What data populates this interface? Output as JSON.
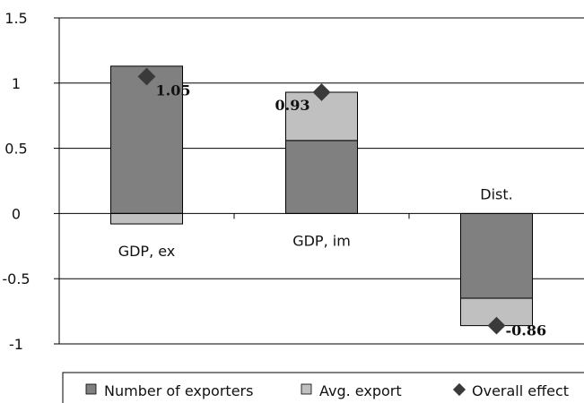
{
  "chart_data": {
    "type": "bar",
    "stacked": true,
    "categories": [
      "GDP, ex",
      "GDP, im",
      "Dist."
    ],
    "series": [
      {
        "name": "Number of exporters",
        "values": [
          1.13,
          0.56,
          -0.65
        ],
        "color": "#808080"
      },
      {
        "name": "Avg. export",
        "values": [
          -0.08,
          0.37,
          -0.21
        ],
        "color": "#c0c0c0"
      }
    ],
    "overall_effect": {
      "name": "Overall effect",
      "values": [
        1.05,
        0.93,
        -0.86
      ],
      "labels": [
        "1.05",
        "0.93",
        "-0.86"
      ],
      "color": "#3a3a3a"
    },
    "ylim": [
      -1,
      1.5
    ],
    "yticks": [
      1.5,
      1,
      0.5,
      0,
      -0.5,
      -1
    ],
    "ytick_labels": [
      "1.5",
      "1",
      "0.5",
      "0",
      "-0.5",
      "-1"
    ],
    "grid": true,
    "legend_position": "bottom",
    "title": "",
    "xlabel": "",
    "ylabel": ""
  }
}
